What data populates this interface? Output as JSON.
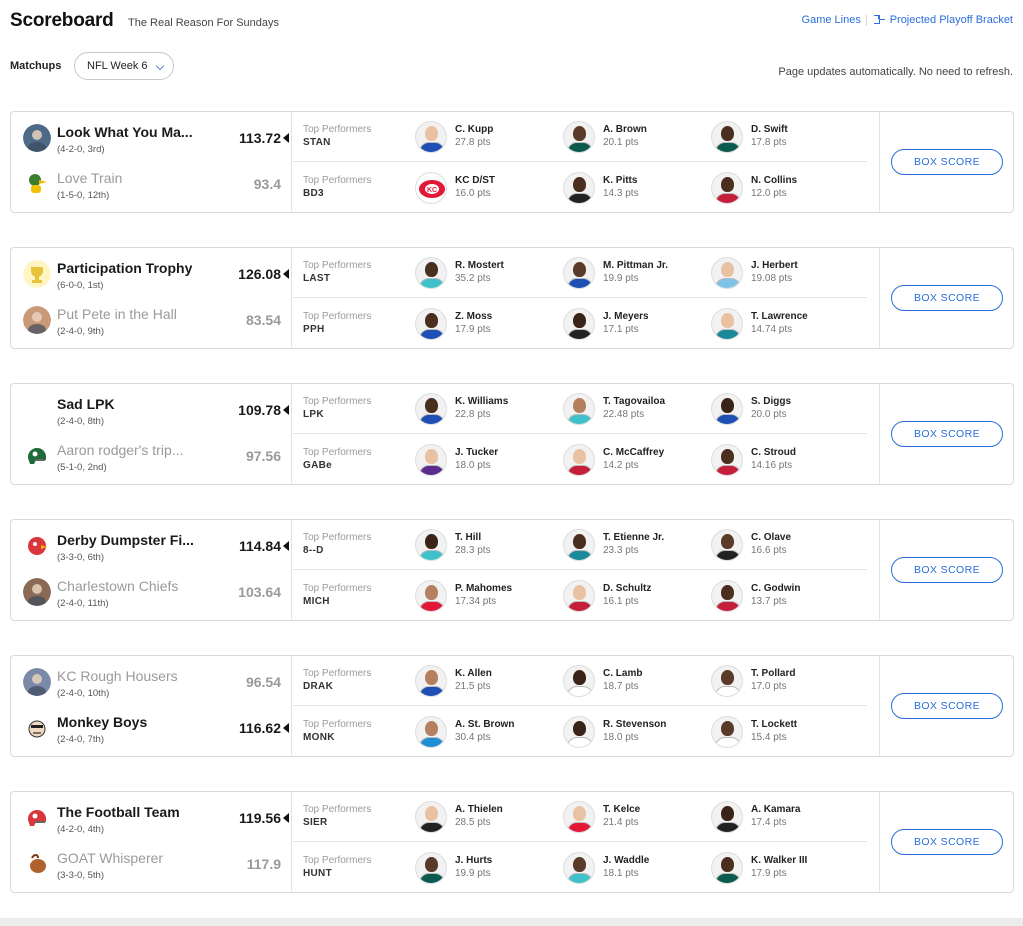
{
  "header": {
    "title": "Scoreboard",
    "subtitle": "The Real Reason For Sundays",
    "link_game_lines": "Game Lines",
    "link_bracket": "Projected Playoff Bracket"
  },
  "controls": {
    "matchups_label": "Matchups",
    "week_selected": "NFL Week 6",
    "auto_update_note": "Page updates automatically. No need to refresh."
  },
  "labels": {
    "top_performers": "Top Performers",
    "box_score": "BOX SCORE"
  },
  "matchups": [
    {
      "teams": [
        {
          "name": "Look What You Ma...",
          "record": "(4-2-0, 3rd)",
          "score": "113.72",
          "winner": true,
          "logo_color": "#4d6a86",
          "logo_icon": "character-icon"
        },
        {
          "name": "Love Train",
          "record": "(1-5-0, 12th)",
          "score": "93.4",
          "winner": false,
          "logo_color": "#3b7d2e",
          "logo_icon": "duck-icon"
        }
      ],
      "performers": [
        {
          "owner": "STAN",
          "players": [
            {
              "name": "C. Kupp",
              "pts": "27.8 pts",
              "jersey": "#1e4fb5",
              "skin": "#e9c2a4"
            },
            {
              "name": "A. Brown",
              "pts": "20.1 pts",
              "jersey": "#0b5a4f",
              "skin": "#5a3a28"
            },
            {
              "name": "D. Swift",
              "pts": "17.8 pts",
              "jersey": "#0b5a4f",
              "skin": "#4a2e20"
            }
          ]
        },
        {
          "owner": "BD3",
          "players": [
            {
              "name": "KC D/ST",
              "pts": "16.0 pts",
              "jersey": "#e31837",
              "skin": "#ffffff",
              "logo": true
            },
            {
              "name": "K. Pitts",
              "pts": "14.3 pts",
              "jersey": "#222222",
              "skin": "#4a2e20"
            },
            {
              "name": "N. Collins",
              "pts": "12.0 pts",
              "jersey": "#c41e3a",
              "skin": "#4a2e20"
            }
          ]
        }
      ]
    },
    {
      "teams": [
        {
          "name": "Participation Trophy",
          "record": "(6-0-0, 1st)",
          "score": "126.08",
          "winner": true,
          "logo_color": "#e6c33a",
          "logo_icon": "trophy-icon"
        },
        {
          "name": "Put Pete in the Hall",
          "record": "(2-4-0, 9th)",
          "score": "83.54",
          "winner": false,
          "logo_color": "#c89a7a",
          "logo_icon": "portrait-icon"
        }
      ],
      "performers": [
        {
          "owner": "LAST",
          "players": [
            {
              "name": "R. Mostert",
              "pts": "35.2 pts",
              "jersey": "#3fc1c9",
              "skin": "#4a2e20"
            },
            {
              "name": "M. Pittman Jr.",
              "pts": "19.9 pts",
              "jersey": "#1e4fb5",
              "skin": "#5a3a28"
            },
            {
              "name": "J. Herbert",
              "pts": "19.08 pts",
              "jersey": "#7fc3e8",
              "skin": "#e9c2a4"
            }
          ]
        },
        {
          "owner": "PPH",
          "players": [
            {
              "name": "Z. Moss",
              "pts": "17.9 pts",
              "jersey": "#1e4fb5",
              "skin": "#4a2e20"
            },
            {
              "name": "J. Meyers",
              "pts": "17.1 pts",
              "jersey": "#222222",
              "skin": "#3a2418"
            },
            {
              "name": "T. Lawrence",
              "pts": "14.74 pts",
              "jersey": "#1a8a9a",
              "skin": "#e9c2a4"
            }
          ]
        }
      ]
    },
    {
      "teams": [
        {
          "name": "Sad LPK",
          "record": "(2-4-0, 8th)",
          "score": "109.78",
          "winner": true,
          "logo_color": "#ffffff",
          "logo_icon": "blank-icon"
        },
        {
          "name": "Aaron rodger's trip...",
          "record": "(5-1-0, 2nd)",
          "score": "97.56",
          "winner": false,
          "logo_color": "#1f6b3a",
          "logo_icon": "helmet-icon"
        }
      ],
      "performers": [
        {
          "owner": "LPK",
          "players": [
            {
              "name": "K. Williams",
              "pts": "22.8 pts",
              "jersey": "#1e4fb5",
              "skin": "#4a2e20"
            },
            {
              "name": "T. Tagovailoa",
              "pts": "22.48 pts",
              "jersey": "#3fc1c9",
              "skin": "#b58060"
            },
            {
              "name": "S. Diggs",
              "pts": "20.0 pts",
              "jersey": "#1e4fb5",
              "skin": "#3a2418"
            }
          ]
        },
        {
          "owner": "GABe",
          "players": [
            {
              "name": "J. Tucker",
              "pts": "18.0 pts",
              "jersey": "#5b2d8e",
              "skin": "#e9c2a4"
            },
            {
              "name": "C. McCaffrey",
              "pts": "14.2 pts",
              "jersey": "#c41e3a",
              "skin": "#e9c2a4"
            },
            {
              "name": "C. Stroud",
              "pts": "14.16 pts",
              "jersey": "#c41e3a",
              "skin": "#4a2e20"
            }
          ]
        }
      ]
    },
    {
      "teams": [
        {
          "name": "Derby Dumpster Fi...",
          "record": "(3-3-0, 6th)",
          "score": "114.84",
          "winner": true,
          "logo_color": "#d9363e",
          "logo_icon": "bird-icon"
        },
        {
          "name": "Charlestown Chiefs",
          "record": "(2-4-0, 11th)",
          "score": "103.64",
          "winner": false,
          "logo_color": "#8a6a55",
          "logo_icon": "portrait-icon"
        }
      ],
      "performers": [
        {
          "owner": "8--D",
          "players": [
            {
              "name": "T. Hill",
              "pts": "28.3 pts",
              "jersey": "#3fc1c9",
              "skin": "#3a2418"
            },
            {
              "name": "T. Etienne Jr.",
              "pts": "23.3 pts",
              "jersey": "#1a8a9a",
              "skin": "#4a2e20"
            },
            {
              "name": "C. Olave",
              "pts": "16.6 pts",
              "jersey": "#222222",
              "skin": "#5a3a28"
            }
          ]
        },
        {
          "owner": "MICH",
          "players": [
            {
              "name": "P. Mahomes",
              "pts": "17.34 pts",
              "jersey": "#e31837",
              "skin": "#b58060"
            },
            {
              "name": "D. Schultz",
              "pts": "16.1 pts",
              "jersey": "#c41e3a",
              "skin": "#e9c2a4"
            },
            {
              "name": "C. Godwin",
              "pts": "13.7 pts",
              "jersey": "#c41e3a",
              "skin": "#4a2e20"
            }
          ]
        }
      ]
    },
    {
      "teams": [
        {
          "name": "KC Rough Housers",
          "record": "(2-4-0, 10th)",
          "score": "96.54",
          "winner": false,
          "logo_color": "#7a8aa8",
          "logo_icon": "group-photo-icon"
        },
        {
          "name": "Monkey Boys",
          "record": "(2-4-0, 7th)",
          "score": "116.62",
          "winner": true,
          "logo_color": "#f0d9c0",
          "logo_icon": "cartoon-face-icon"
        }
      ],
      "performers": [
        {
          "owner": "DRAK",
          "players": [
            {
              "name": "K. Allen",
              "pts": "21.5 pts",
              "jersey": "#1e4fb5",
              "skin": "#b58060"
            },
            {
              "name": "C. Lamb",
              "pts": "18.7 pts",
              "jersey": "#ffffff",
              "skin": "#3a2418"
            },
            {
              "name": "T. Pollard",
              "pts": "17.0 pts",
              "jersey": "#ffffff",
              "skin": "#5a3a28"
            }
          ]
        },
        {
          "owner": "MONK",
          "players": [
            {
              "name": "A. St. Brown",
              "pts": "30.4 pts",
              "jersey": "#1e8fd6",
              "skin": "#b58060"
            },
            {
              "name": "R. Stevenson",
              "pts": "18.0 pts",
              "jersey": "#ffffff",
              "skin": "#3a2418"
            },
            {
              "name": "T. Lockett",
              "pts": "15.4 pts",
              "jersey": "#ffffff",
              "skin": "#5a3a28"
            }
          ]
        }
      ]
    },
    {
      "teams": [
        {
          "name": "The Football Team",
          "record": "(4-2-0, 4th)",
          "score": "119.56",
          "winner": true,
          "logo_color": "#d9363e",
          "logo_icon": "helmet-icon"
        },
        {
          "name": "GOAT Whisperer",
          "record": "(3-3-0, 5th)",
          "score": "117.9",
          "winner": false,
          "logo_color": "#b0622e",
          "logo_icon": "goat-icon"
        }
      ],
      "performers": [
        {
          "owner": "SIER",
          "players": [
            {
              "name": "A. Thielen",
              "pts": "28.5 pts",
              "jersey": "#222222",
              "skin": "#e9c2a4"
            },
            {
              "name": "T. Kelce",
              "pts": "21.4 pts",
              "jersey": "#e31837",
              "skin": "#e9c2a4"
            },
            {
              "name": "A. Kamara",
              "pts": "17.4 pts",
              "jersey": "#222222",
              "skin": "#3a2418"
            }
          ]
        },
        {
          "owner": "HUNT",
          "players": [
            {
              "name": "J. Hurts",
              "pts": "19.9 pts",
              "jersey": "#0b5a4f",
              "skin": "#5a3a28"
            },
            {
              "name": "J. Waddle",
              "pts": "18.1 pts",
              "jersey": "#3fc1c9",
              "skin": "#5a3a28"
            },
            {
              "name": "K. Walker III",
              "pts": "17.9 pts",
              "jersey": "#0b5a4f",
              "skin": "#4a2e20"
            }
          ]
        }
      ]
    }
  ]
}
